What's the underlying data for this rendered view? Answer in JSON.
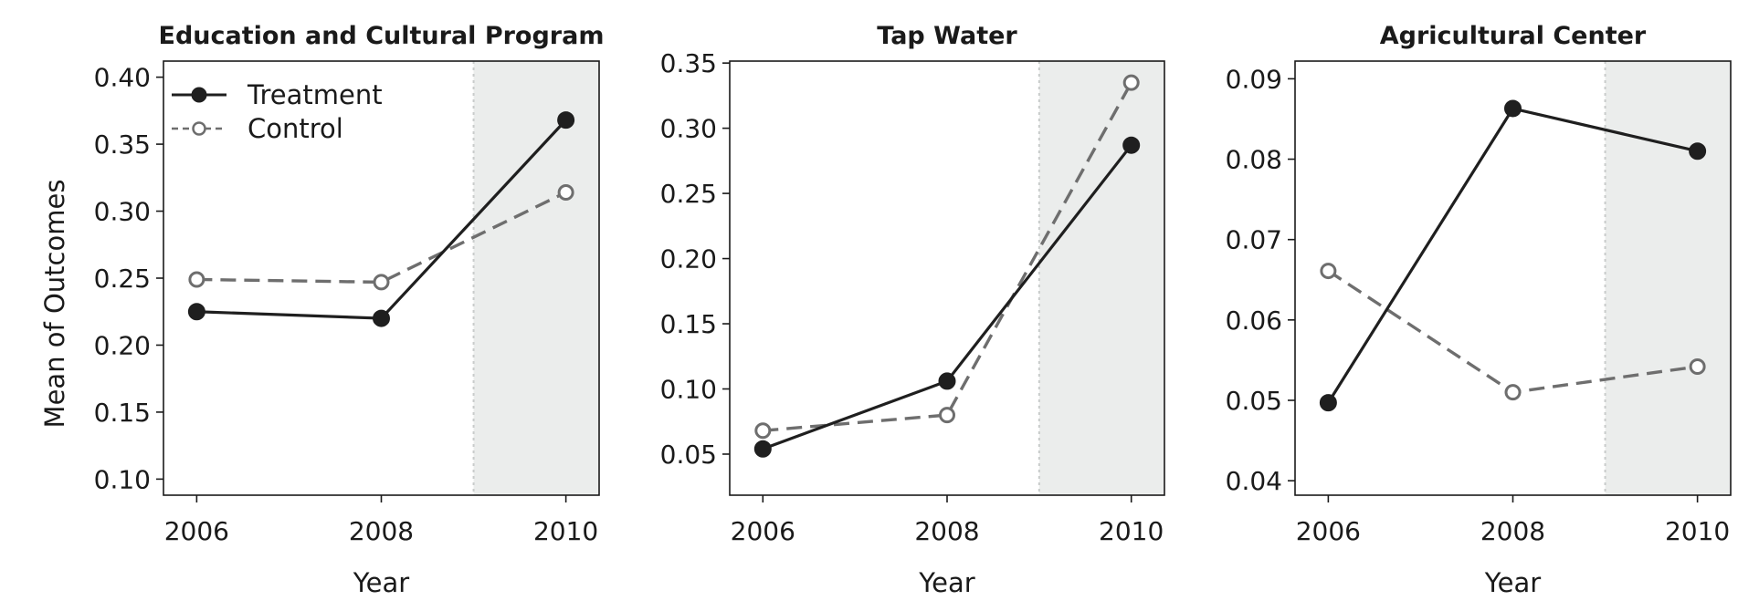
{
  "figure": {
    "ylabel": "Mean of Outcomes",
    "legend": {
      "placement": "top-left",
      "entries": [
        {
          "label": "Treatment",
          "color": "#1f1f1f",
          "marker": "filled-circle",
          "line": "solid"
        },
        {
          "label": "Control",
          "color": "#6e6e6e",
          "marker": "open-circle",
          "line": "dashed"
        }
      ]
    },
    "shade_color": "#ebedec",
    "shade_start_year": 2009
  },
  "chart_data": [
    {
      "type": "line",
      "title": "Education and Cultural Program",
      "xlabel": "Year",
      "ylabel": "Mean of Outcomes",
      "x": [
        2006,
        2008,
        2010
      ],
      "xlim": [
        2005.64,
        2010.36
      ],
      "ylim": [
        0.088,
        0.412
      ],
      "yticks": [
        0.1,
        0.15,
        0.2,
        0.25,
        0.3,
        0.35,
        0.4
      ],
      "ytick_labels": [
        "0.10",
        "0.15",
        "0.20",
        "0.25",
        "0.30",
        "0.35",
        "0.40"
      ],
      "xticks": [
        2006,
        2008,
        2010
      ],
      "xtick_labels": [
        "2006",
        "2008",
        "2010"
      ],
      "series": [
        {
          "name": "Treatment",
          "values": [
            0.225,
            0.22,
            0.368
          ]
        },
        {
          "name": "Control",
          "values": [
            0.249,
            0.247,
            0.314
          ]
        }
      ]
    },
    {
      "type": "line",
      "title": "Tap Water",
      "xlabel": "Year",
      "ylabel": "",
      "x": [
        2006,
        2008,
        2010
      ],
      "xlim": [
        2005.64,
        2010.36
      ],
      "ylim": [
        0.0185,
        0.3515
      ],
      "yticks": [
        0.05,
        0.1,
        0.15,
        0.2,
        0.25,
        0.3,
        0.35
      ],
      "ytick_labels": [
        "0.05",
        "0.10",
        "0.15",
        "0.20",
        "0.25",
        "0.30",
        "0.35"
      ],
      "xticks": [
        2006,
        2008,
        2010
      ],
      "xtick_labels": [
        "2006",
        "2008",
        "2010"
      ],
      "series": [
        {
          "name": "Treatment",
          "values": [
            0.054,
            0.106,
            0.287
          ]
        },
        {
          "name": "Control",
          "values": [
            0.068,
            0.08,
            0.335
          ]
        }
      ]
    },
    {
      "type": "line",
      "title": "Agricultural Center",
      "xlabel": "Year",
      "ylabel": "",
      "x": [
        2006,
        2008,
        2010
      ],
      "xlim": [
        2005.64,
        2010.36
      ],
      "ylim": [
        0.0382,
        0.0922
      ],
      "yticks": [
        0.04,
        0.05,
        0.06,
        0.07,
        0.08,
        0.09
      ],
      "ytick_labels": [
        "0.04",
        "0.05",
        "0.06",
        "0.07",
        "0.08",
        "0.09"
      ],
      "xticks": [
        2006,
        2008,
        2010
      ],
      "xtick_labels": [
        "2006",
        "2008",
        "2010"
      ],
      "series": [
        {
          "name": "Treatment",
          "values": [
            0.0497,
            0.0863,
            0.081
          ]
        },
        {
          "name": "Control",
          "values": [
            0.0661,
            0.051,
            0.0542
          ]
        }
      ]
    }
  ]
}
